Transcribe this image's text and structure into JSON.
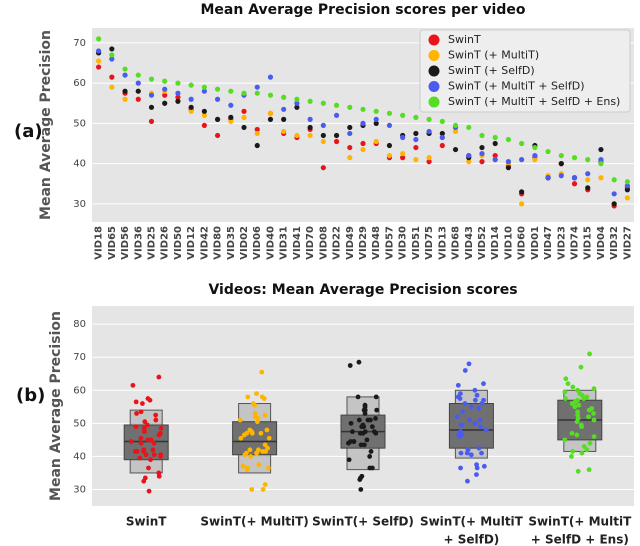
{
  "chart_data": [
    {
      "type": "dot",
      "panel_label": "(a)",
      "title": "Mean Average Precision scores per video",
      "y_label": "Mean Average Precision",
      "categories": [
        "VID18",
        "VID65",
        "VID56",
        "VID36",
        "VID25",
        "VID26",
        "VID50",
        "VID12",
        "VID42",
        "VID80",
        "VID35",
        "VID02",
        "VID06",
        "VID40",
        "VID31",
        "VID41",
        "VID70",
        "VID08",
        "VID22",
        "VID49",
        "VID29",
        "VID48",
        "VID57",
        "VID30",
        "VID51",
        "VID75",
        "VID13",
        "VID68",
        "VID43",
        "VID52",
        "VID14",
        "VID10",
        "VID60",
        "VID01",
        "VID47",
        "VID23",
        "VID74",
        "VID15",
        "VID04",
        "VID32",
        "VID27"
      ],
      "ylim": [
        25.5,
        73.7
      ],
      "yticks": [
        30,
        40,
        50,
        60,
        70
      ],
      "grid": true,
      "legend": "upper-right",
      "series": [
        {
          "name": "SwinT",
          "color": "#e8141a",
          "values": [
            64,
            61.5,
            57.5,
            56,
            50.5,
            57,
            56.5,
            53.5,
            49.5,
            47,
            51,
            53,
            48.5,
            52.5,
            47.5,
            46.5,
            48.5,
            39,
            45.5,
            44,
            45,
            45,
            41.5,
            41.5,
            44,
            40.5,
            44.5,
            49,
            42,
            40.5,
            42,
            39.5,
            32.5,
            41.5,
            36.5,
            40,
            35,
            33.5,
            40.5,
            29.5,
            34
          ]
        },
        {
          "name": "SwinT (+ MultiT)",
          "color": "#ffb400",
          "values": [
            65.5,
            59,
            56,
            58,
            57.5,
            58,
            55.5,
            53,
            52,
            51,
            50.5,
            51.5,
            47.5,
            52.5,
            48,
            47,
            47,
            45.5,
            47,
            41.5,
            43.5,
            45.5,
            42,
            42.5,
            41,
            41.5,
            46.5,
            48,
            40.5,
            42,
            41,
            40,
            30,
            41,
            37,
            37.5,
            36.5,
            36,
            36.5,
            30,
            31.5
          ]
        },
        {
          "name": "SwinT (+ SelfD)",
          "color": "#1a1a1a",
          "values": [
            67.5,
            68.5,
            58,
            58,
            54,
            55,
            55.5,
            54,
            53,
            51,
            51.5,
            49,
            44.5,
            51,
            51,
            54,
            49,
            47,
            47,
            49,
            49.5,
            50,
            44.5,
            47,
            47.5,
            47.5,
            47.5,
            43.5,
            41.5,
            44,
            45,
            39,
            33,
            44.5,
            36.5,
            40,
            36.5,
            34,
            43.5,
            30,
            33.5
          ]
        },
        {
          "name": "SwinT (+ MultiT + SelfD)",
          "color": "#4a5cf0",
          "values": [
            68,
            66,
            62,
            60,
            57,
            58.5,
            57.5,
            56,
            58,
            56,
            54.5,
            57,
            59,
            61.5,
            53.5,
            55,
            51,
            49.5,
            52,
            47.5,
            50,
            51,
            49.5,
            46.5,
            46,
            48,
            46.5,
            49,
            42,
            42.5,
            41,
            40.5,
            41,
            42,
            36.5,
            37,
            36.5,
            37.5,
            41,
            32.5,
            34.5
          ]
        },
        {
          "name": "SwinT (+ MultiT + SelfD + Ens)",
          "color": "#55dd22",
          "values": [
            71,
            67,
            63.5,
            62,
            61,
            60.5,
            60,
            59.5,
            59,
            58.5,
            58,
            57.5,
            57.5,
            57,
            56.5,
            56,
            55.5,
            55,
            54.5,
            54,
            53.5,
            53,
            52.5,
            52,
            51.5,
            51,
            50.5,
            49.5,
            49,
            47,
            46.5,
            46,
            45,
            44,
            43,
            42,
            41.5,
            41,
            40,
            36,
            35.5
          ]
        }
      ]
    },
    {
      "type": "box",
      "panel_label": "(b)",
      "title": "Videos: Mean Average Precision scores",
      "y_label": "Mean Average Precision",
      "categories": [
        [
          "SwinT"
        ],
        [
          "SwinT(+ MultiT)"
        ],
        [
          "SwinT(+ SelfD)"
        ],
        [
          "SwinT(+ MultiT",
          "+ SelfD)"
        ],
        [
          "SwinT(+ MultiT",
          "+ SelfD + Ens)"
        ]
      ],
      "ylim": [
        25,
        85.5
      ],
      "yticks": [
        30,
        40,
        50,
        60,
        70,
        80
      ],
      "grid": true,
      "box_color": "#707070",
      "outer_color": "#c4c4c4",
      "boxes": [
        {
          "whisker_low": 35,
          "q1": 39,
          "median": 44.5,
          "q3": 49.5,
          "whisker_high": 54
        },
        {
          "whisker_low": 35,
          "q1": 40.5,
          "median": 44.5,
          "q3": 50.5,
          "whisker_high": 56
        },
        {
          "whisker_low": 36,
          "q1": 42.5,
          "median": 47.5,
          "q3": 52.5,
          "whisker_high": 58
        },
        {
          "whisker_low": 39.5,
          "q1": 42.5,
          "median": 48,
          "q3": 56,
          "whisker_high": 60
        },
        {
          "whisker_low": 41.5,
          "q1": 45,
          "median": 51,
          "q3": 57,
          "whisker_high": 60
        }
      ]
    }
  ]
}
